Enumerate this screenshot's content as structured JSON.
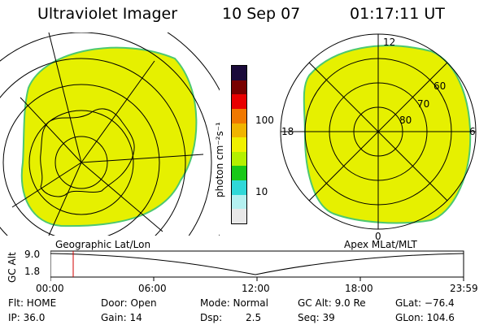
{
  "header": {
    "instrument": "Ultraviolet Imager",
    "date": "10 Sep 07",
    "time": "01:17:11 UT"
  },
  "colorbar": {
    "unit_label": "photon cm⁻²s⁻¹",
    "tick_100": "100",
    "tick_10": "10",
    "colors": [
      "#e8e8e8",
      "#b4f0f0",
      "#30d8d8",
      "#18c818",
      "#b4f000",
      "#f0f000",
      "#f0b400",
      "#f07800",
      "#e80000",
      "#780000",
      "#1a0a3a"
    ]
  },
  "left_panel": {
    "caption": "Geographic Lat/Lon",
    "image_color": "#e6f000",
    "edge_color": "#4cc870"
  },
  "right_panel": {
    "caption": "Apex  MLat/MLT",
    "label_12": "12",
    "label_18": "18",
    "label_6": "6",
    "label_0": "0",
    "label_60": "60",
    "label_70": "70",
    "label_80": "80"
  },
  "altitude_plot": {
    "axis_title": "GC Alt",
    "y_top": "9.0",
    "y_bottom": "1.8",
    "ticks": [
      "00:00",
      "06:00",
      "12:00",
      "18:00",
      "23:59"
    ],
    "marker_color": "#d00000"
  },
  "info": {
    "flt": "Flt: HOME",
    "ip": "IP: 36.0",
    "door": "Door: Open",
    "gain": "Gain: 14",
    "mode": "Mode: Normal",
    "dsp_label": "Dsp:",
    "dsp_value": "2.5",
    "gc_alt": "GC Alt: 9.0 Re",
    "seq": "Seq: 39",
    "glat": "GLat: −76.4",
    "glon": "GLon: 104.6"
  }
}
